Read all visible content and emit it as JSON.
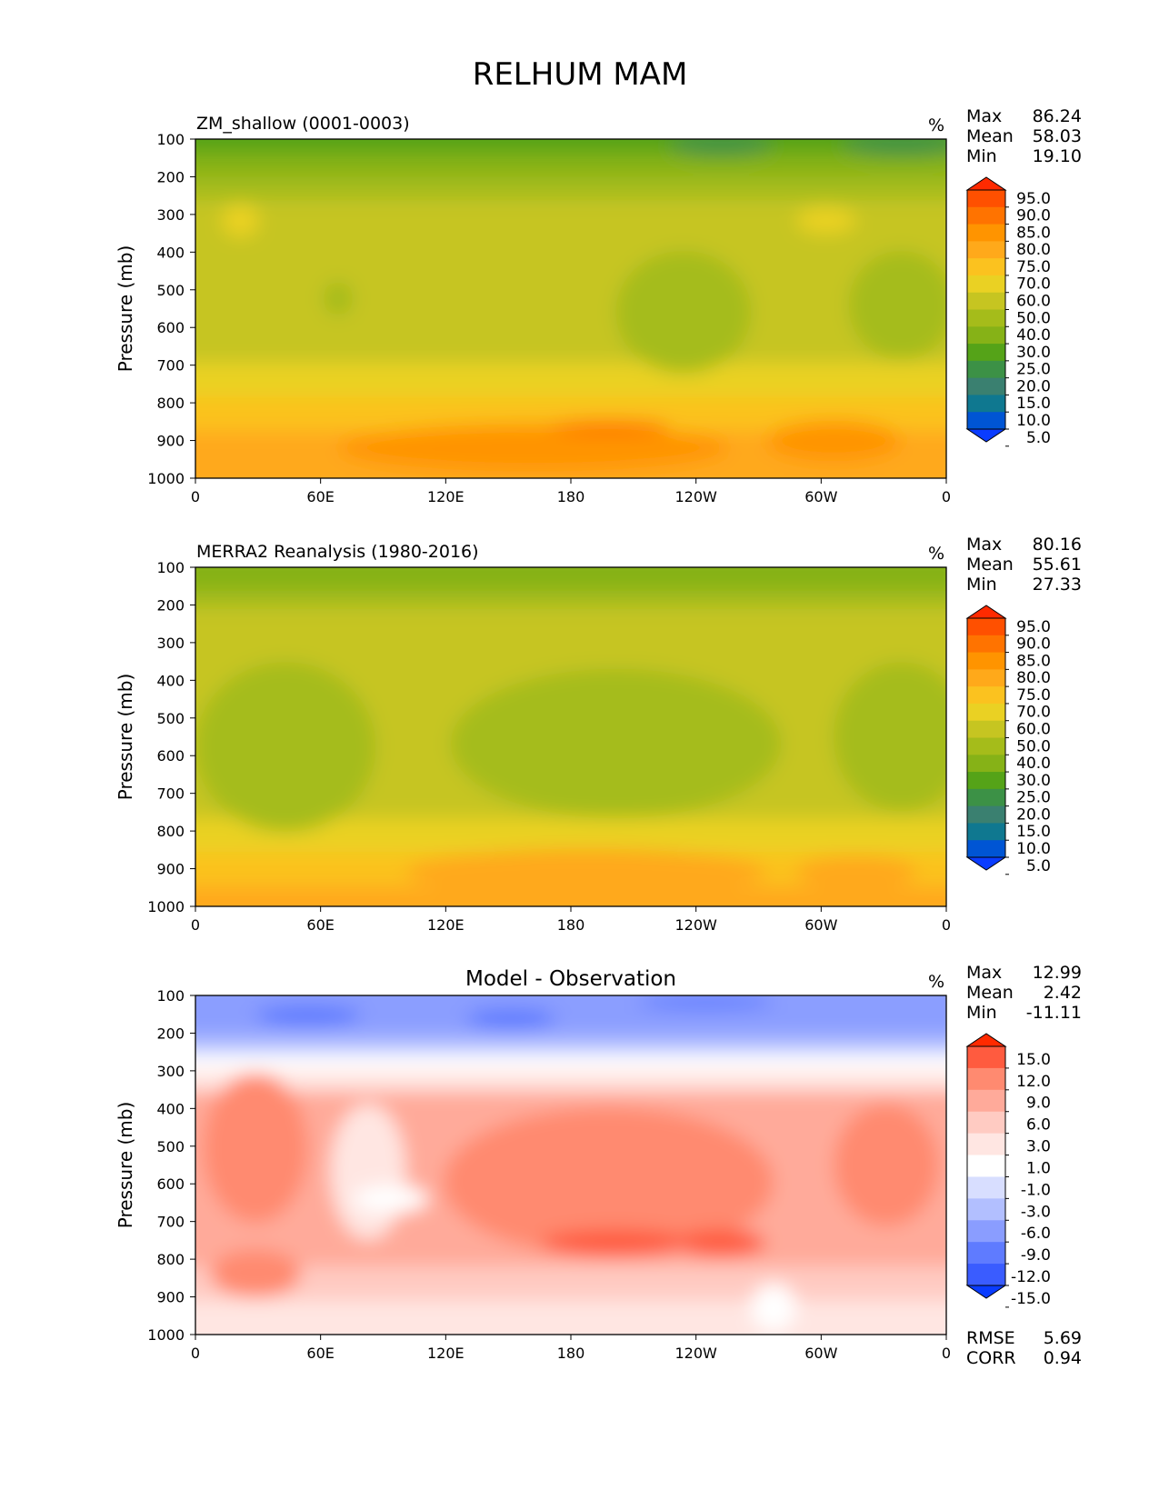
{
  "figure_title": "RELHUM MAM",
  "chart_data": [
    {
      "type": "heatmap",
      "title": "ZM_shallow (0001-0003)",
      "units": "%",
      "ylabel": "Pressure (mb)",
      "xticks": [
        "0",
        "60E",
        "120E",
        "180",
        "120W",
        "60W",
        "0"
      ],
      "yticks": [
        "100",
        "200",
        "300",
        "400",
        "500",
        "600",
        "700",
        "800",
        "900",
        "1000"
      ],
      "ylim": [
        100,
        1000
      ],
      "stats": [
        {
          "label": "Max",
          "value": "86.24"
        },
        {
          "label": "Mean",
          "value": "58.03"
        },
        {
          "label": "Min",
          "value": "19.10"
        }
      ],
      "colorbar": {
        "labels": [
          "95.0",
          "90.0",
          "85.0",
          "80.0",
          "75.0",
          "70.0",
          "60.0",
          "50.0",
          "40.0",
          "30.0",
          "25.0",
          "20.0",
          "15.0",
          "10.0",
          "5.0"
        ],
        "colors": [
          "#ff2a00",
          "#ff5000",
          "#ff7300",
          "#ff9400",
          "#ffa91a",
          "#fbc21f",
          "#ead123",
          "#c6c521",
          "#a5bc1a",
          "#86b217",
          "#55a318",
          "#3c9146",
          "#3a8070",
          "#0f7890",
          "#0055d4",
          "#0a3cff"
        ]
      }
    },
    {
      "type": "heatmap",
      "title": "MERRA2 Reanalysis (1980-2016)",
      "units": "%",
      "ylabel": "Pressure (mb)",
      "xticks": [
        "0",
        "60E",
        "120E",
        "180",
        "120W",
        "60W",
        "0"
      ],
      "yticks": [
        "100",
        "200",
        "300",
        "400",
        "500",
        "600",
        "700",
        "800",
        "900",
        "1000"
      ],
      "ylim": [
        100,
        1000
      ],
      "stats": [
        {
          "label": "Max",
          "value": "80.16"
        },
        {
          "label": "Mean",
          "value": "55.61"
        },
        {
          "label": "Min",
          "value": "27.33"
        }
      ],
      "colorbar": {
        "labels": [
          "95.0",
          "90.0",
          "85.0",
          "80.0",
          "75.0",
          "70.0",
          "60.0",
          "50.0",
          "40.0",
          "30.0",
          "25.0",
          "20.0",
          "15.0",
          "10.0",
          "5.0"
        ],
        "colors": [
          "#ff2a00",
          "#ff5000",
          "#ff7300",
          "#ff9400",
          "#ffa91a",
          "#fbc21f",
          "#ead123",
          "#c6c521",
          "#a5bc1a",
          "#86b217",
          "#55a318",
          "#3c9146",
          "#3a8070",
          "#0f7890",
          "#0055d4",
          "#0a3cff"
        ]
      }
    },
    {
      "type": "heatmap",
      "title": "Model - Observation",
      "units": "%",
      "ylabel": "Pressure (mb)",
      "xticks": [
        "0",
        "60E",
        "120E",
        "180",
        "120W",
        "60W",
        "0"
      ],
      "yticks": [
        "100",
        "200",
        "300",
        "400",
        "500",
        "600",
        "700",
        "800",
        "900",
        "1000"
      ],
      "ylim": [
        100,
        1000
      ],
      "stats": [
        {
          "label": "Max",
          "value": "12.99"
        },
        {
          "label": "Mean",
          "value": "2.42"
        },
        {
          "label": "Min",
          "value": "-11.11"
        }
      ],
      "extra_stats": [
        {
          "label": "RMSE",
          "value": "5.69"
        },
        {
          "label": "CORR",
          "value": "0.94"
        }
      ],
      "colorbar": {
        "labels": [
          "15.0",
          "12.0",
          "9.0",
          "6.0",
          "3.0",
          "1.0",
          "-1.0",
          "-3.0",
          "-6.0",
          "-9.0",
          "-12.0",
          "-15.0"
        ],
        "colors": [
          "#ff2a00",
          "#ff5b3f",
          "#ff8a70",
          "#ffaa9a",
          "#ffcbc2",
          "#ffe6e2",
          "#ffffff",
          "#d8deff",
          "#b2bfff",
          "#8a9dff",
          "#5f7bff",
          "#3a5cff",
          "#0a3cff"
        ]
      }
    }
  ]
}
